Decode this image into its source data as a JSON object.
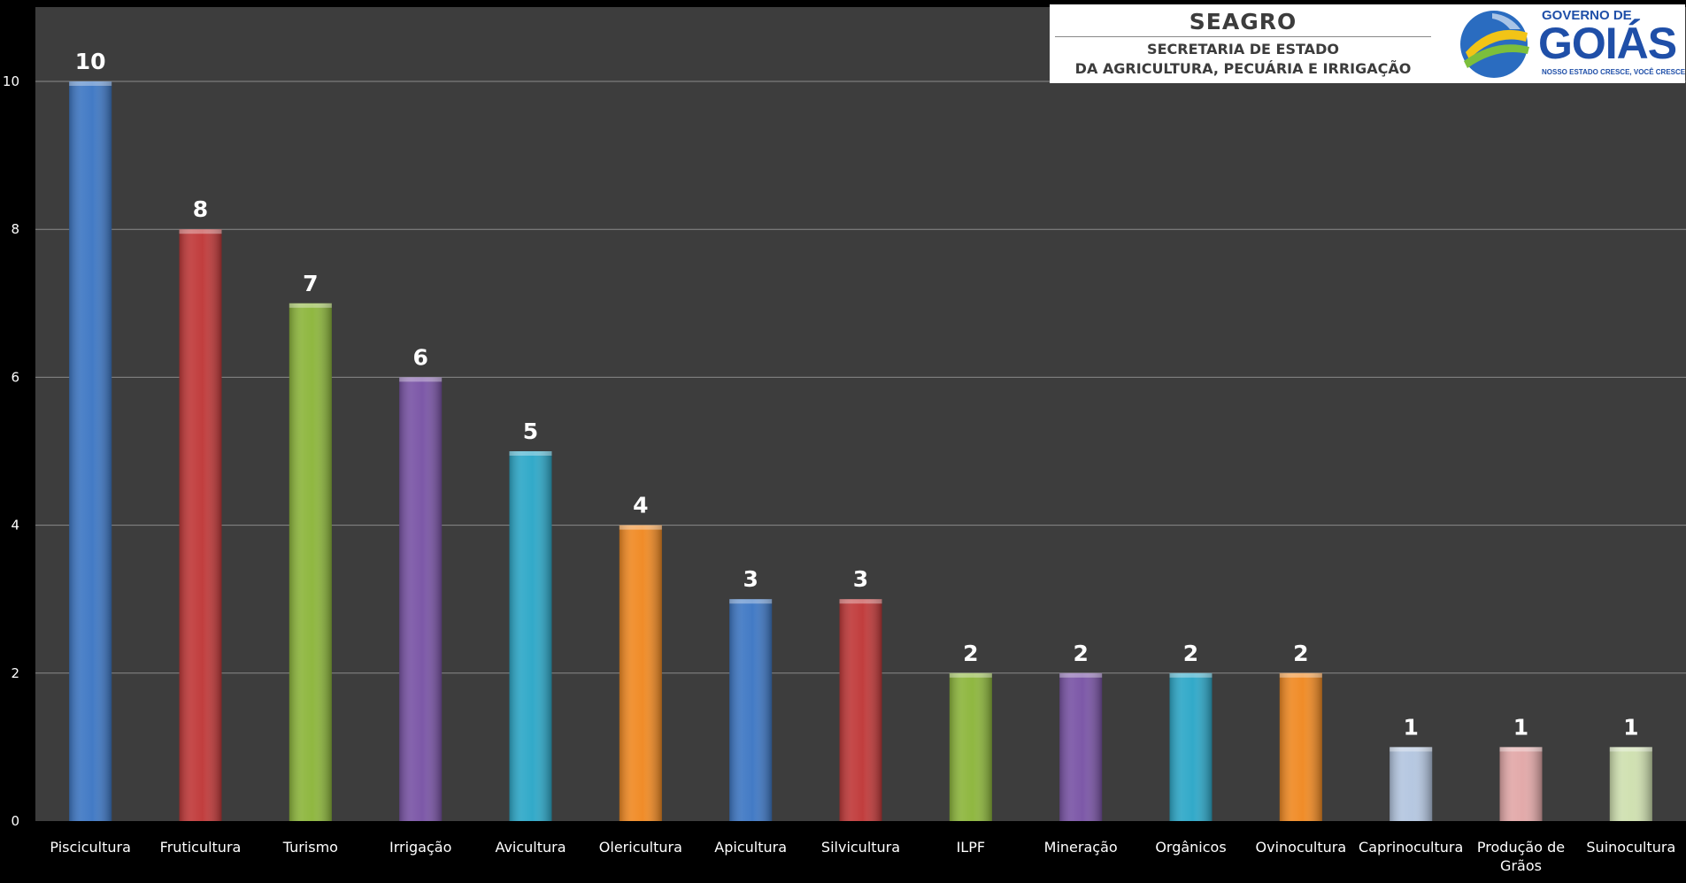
{
  "chart_data": {
    "type": "bar",
    "categories": [
      "Piscicultura",
      "Fruticultura",
      "Turismo",
      "Irrigação",
      "Avicultura",
      "Olericultura",
      "Apicultura",
      "Silvicultura",
      "ILPF",
      "Mineração",
      "Orgânicos",
      "Ovinocultura",
      "Caprinocultura",
      "Produção de Grãos",
      "Suinocultura"
    ],
    "values": [
      10,
      8,
      7,
      6,
      5,
      4,
      3,
      3,
      2,
      2,
      2,
      2,
      1,
      1,
      1
    ],
    "colors": [
      "#3f78c4",
      "#c03a3a",
      "#8db63d",
      "#7a55a6",
      "#2ea8c8",
      "#f08a24",
      "#3f78c4",
      "#c03a3a",
      "#8db63d",
      "#7a55a6",
      "#2ea8c8",
      "#f08a24",
      "#b4c6e0",
      "#e2a8a8",
      "#cfe0b0"
    ],
    "yticks": [
      0,
      2,
      4,
      6,
      8,
      10
    ],
    "ylim": [
      0,
      10
    ],
    "grid": true,
    "title": "",
    "xlabel": "",
    "ylabel": ""
  },
  "logos": {
    "seagro": {
      "name": "SEAGRO",
      "line1": "SECRETARIA DE ESTADO",
      "line2": "DA AGRICULTURA, PECUÁRIA E IRRIGAÇÃO"
    },
    "goias": {
      "top": "GOVERNO DE",
      "main": "GOIÁS",
      "slogan": "NOSSO ESTADO CRESCE, VOCÊ CRESCE JUNTO"
    }
  },
  "theme": {
    "plot_bg": "#3d3d3d",
    "page_bg": "#000000",
    "gridline": "#8a8a8a",
    "text": "#ffffff"
  }
}
